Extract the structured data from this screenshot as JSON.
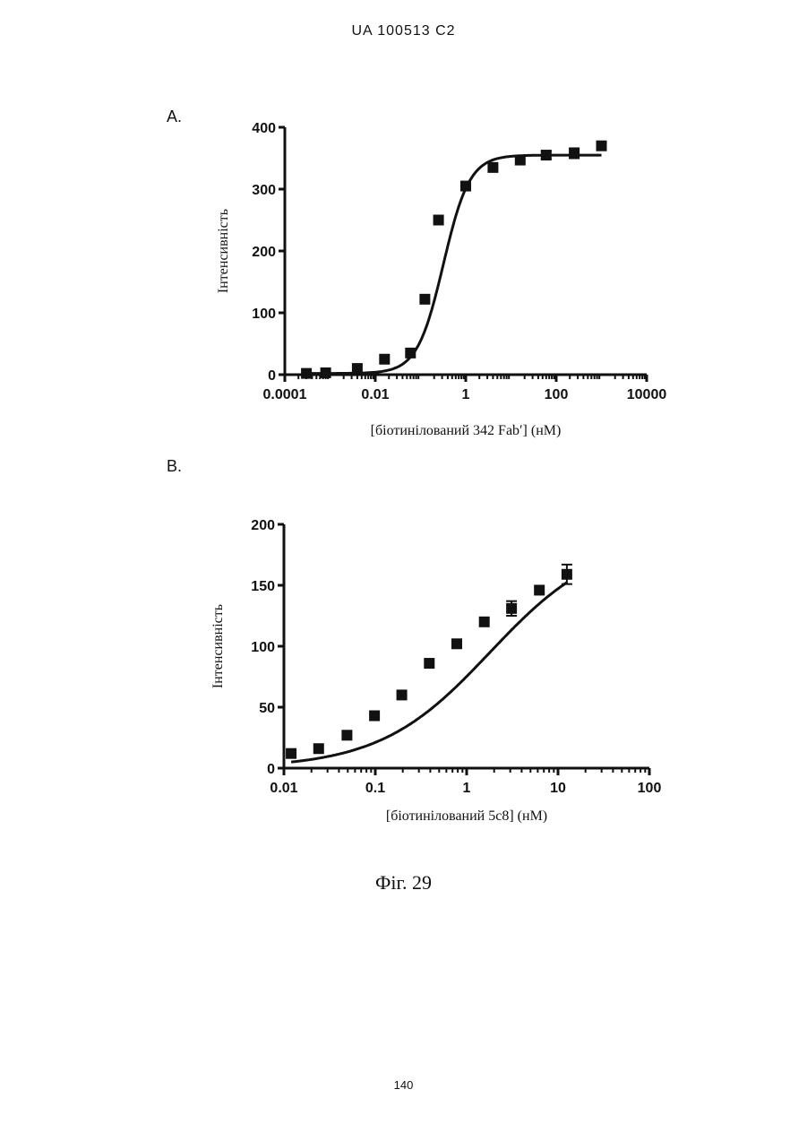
{
  "header": "UA   100513   C2",
  "caption": "Фіг. 29",
  "page_number": "140",
  "chart_data": [
    {
      "panel_label": "A.",
      "type": "scatter",
      "x_scale": "log",
      "xlim": [
        0.0001,
        10000
      ],
      "ylim": [
        0,
        400
      ],
      "x_ticks": [
        0.0001,
        0.01,
        1,
        100,
        10000
      ],
      "x_tick_labels": [
        "0.0001",
        "0.01",
        "1",
        "100",
        "10000"
      ],
      "y_ticks": [
        0,
        100,
        200,
        300,
        400
      ],
      "y_tick_labels": [
        "0",
        "100",
        "200",
        "300",
        "400"
      ],
      "xlabel": "[біотинілований 342 Fab′] (нМ)",
      "ylabel": "Інтенсивність",
      "fit": {
        "model": "sigmoid",
        "bottom": 2,
        "top": 355,
        "ec50": 0.32,
        "hill": 1.5
      },
      "series": [
        {
          "x": [
            0.0003,
            0.0008,
            0.004,
            0.016,
            0.06,
            0.125,
            0.25,
            1,
            4,
            16,
            60,
            250,
            1000
          ],
          "y": [
            2,
            3,
            10,
            25,
            35,
            122,
            250,
            305,
            335,
            347,
            355,
            358,
            370
          ],
          "error": [
            0,
            0,
            0,
            0,
            0,
            0,
            0,
            0,
            0,
            0,
            6,
            8,
            0
          ]
        }
      ]
    },
    {
      "panel_label": "B.",
      "type": "scatter",
      "x_scale": "log",
      "xlim": [
        0.01,
        100
      ],
      "ylim": [
        0,
        200
      ],
      "x_ticks": [
        0.01,
        0.1,
        1,
        10,
        100
      ],
      "x_tick_labels": [
        "0.01",
        "0.1",
        "1",
        "10",
        "100"
      ],
      "y_ticks": [
        0,
        50,
        100,
        150,
        200
      ],
      "y_tick_labels": [
        "0",
        "50",
        "100",
        "150",
        "200"
      ],
      "xlabel": "[біотинілований 5c8] (нМ)",
      "ylabel": "Інтенсивність",
      "fit": {
        "model": "sigmoid",
        "bottom": 0,
        "top": 190,
        "ec50": 1.8,
        "hill": 0.72
      },
      "series": [
        {
          "x": [
            0.012,
            0.024,
            0.049,
            0.098,
            0.195,
            0.39,
            0.78,
            1.56,
            3.1,
            6.25,
            12.5
          ],
          "y": [
            12,
            16,
            27,
            43,
            60,
            86,
            102,
            120,
            131,
            146,
            159
          ],
          "error": [
            0,
            0,
            0,
            0,
            0,
            0,
            0,
            0,
            6,
            0,
            8
          ]
        }
      ]
    }
  ]
}
